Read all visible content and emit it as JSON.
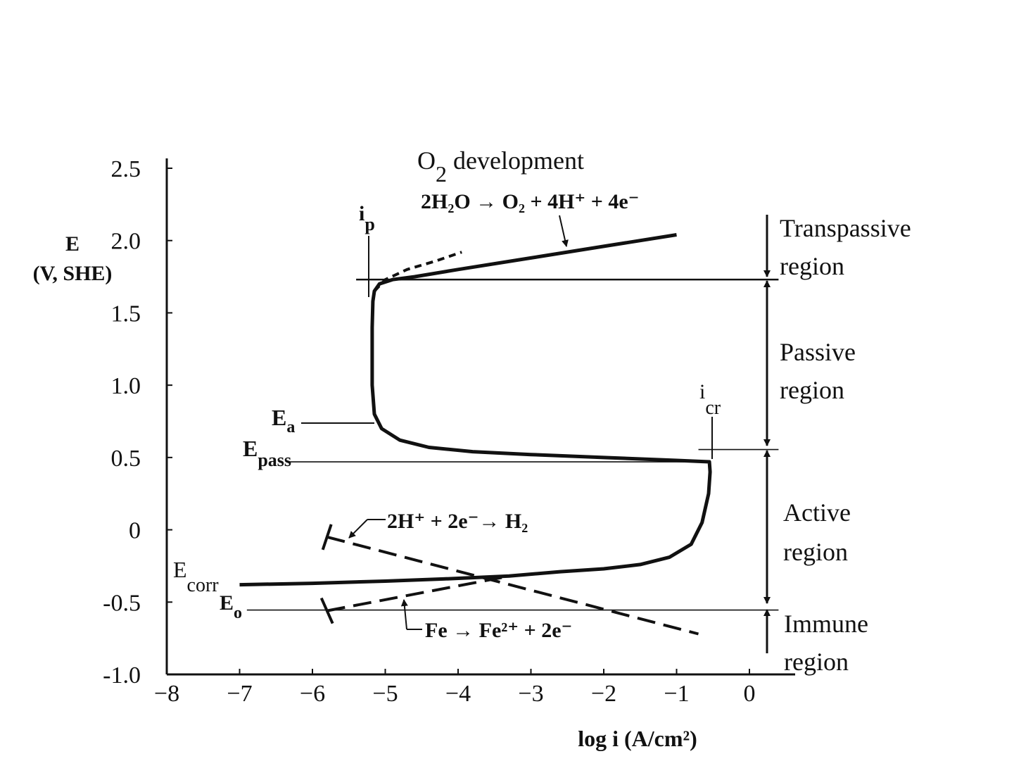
{
  "chart_data": {
    "type": "line",
    "title": "",
    "xlabel": "log i (A/cm²)",
    "ylabel": {
      "line1": "E",
      "line2": "(V, SHE)"
    },
    "xlim": [
      -8,
      0
    ],
    "ylim": [
      -1.0,
      2.5
    ],
    "x_ticks": [
      -8,
      -7,
      -6,
      -5,
      -4,
      -3,
      -2,
      -1,
      0
    ],
    "x_tick_labels": [
      "−8",
      "−7",
      "−6",
      "−5",
      "−4",
      "−3",
      "−2",
      "−1",
      "0"
    ],
    "y_ticks": [
      2.5,
      2.0,
      1.5,
      1.0,
      0.5,
      0,
      -0.5,
      -1.0
    ],
    "y_tick_labels": [
      "2.5",
      "2.0",
      "1.5",
      "1.0",
      "0.5",
      "0",
      "-0.5",
      "-1.0"
    ],
    "series": [
      {
        "id": "polarization",
        "style": "solid",
        "x": [
          -7.0,
          -6.0,
          -5.0,
          -4.2,
          -3.3,
          -2.6,
          -2.0,
          -1.5,
          -1.1,
          -0.8,
          -0.65,
          -0.56,
          -0.54,
          -0.55,
          -1.0,
          -2.0,
          -3.0,
          -3.8,
          -4.4,
          -4.8,
          -5.05,
          -5.15,
          -5.18,
          -5.18,
          -5.17,
          -5.15,
          -5.08,
          -4.9,
          -4.6,
          -4.0,
          -3.0,
          -2.0,
          -1.0
        ],
        "y": [
          -0.38,
          -0.37,
          -0.355,
          -0.34,
          -0.32,
          -0.29,
          -0.27,
          -0.24,
          -0.19,
          -0.1,
          0.05,
          0.25,
          0.4,
          0.47,
          0.48,
          0.5,
          0.52,
          0.54,
          0.57,
          0.62,
          0.7,
          0.8,
          1.0,
          1.4,
          1.58,
          1.65,
          1.7,
          1.73,
          1.75,
          1.8,
          1.88,
          1.96,
          2.04
        ]
      },
      {
        "id": "oxygen-dashed",
        "style": "dashed",
        "x": [
          -5.15,
          -5.0,
          -4.7,
          -4.3,
          -3.95
        ],
        "y": [
          1.65,
          1.73,
          1.8,
          1.86,
          1.92
        ]
      },
      {
        "id": "hydrogen-dashed",
        "style": "dashed",
        "x": [
          -5.8,
          -0.7
        ],
        "y": [
          -0.05,
          -0.72
        ]
      },
      {
        "id": "iron-dashed",
        "style": "dashed",
        "x": [
          -5.8,
          -3.4
        ],
        "y": [
          -0.56,
          -0.33
        ]
      }
    ],
    "reference_lines": [
      {
        "id": "top",
        "y": 1.73,
        "x_from": -5.4,
        "x_to": 0.4
      },
      {
        "id": "icr",
        "y": 0.555,
        "x_from": -0.7,
        "x_to": 0.4
      },
      {
        "id": "epass",
        "y": 0.47,
        "x_from": -6.35,
        "x_to": -0.54
      },
      {
        "id": "eo",
        "y": -0.555,
        "x_from": -6.9,
        "x_to": 0.4
      }
    ],
    "annotations": {
      "o2_development": {
        "main": "O",
        "sub": "2",
        "rest": " development"
      },
      "o2_reaction": "2H₂O → O₂ + 4H⁺ + 4e⁻",
      "ip": {
        "main": "i",
        "sub": "p"
      },
      "icr": {
        "main": "i",
        "sub": "cr"
      },
      "ea": {
        "main": "E",
        "sub": "a"
      },
      "epass": {
        "main": "E",
        "sub": "pass"
      },
      "h2_reaction": "2H⁺ + 2e⁻→ H₂",
      "ecorr": {
        "main": "E",
        "sub": "corr"
      },
      "eo": {
        "main": "E",
        "sub": "o"
      },
      "fe_reaction": "Fe → Fe²⁺ + 2e⁻"
    },
    "regions": [
      {
        "line1": "Transpassive",
        "line2": "region"
      },
      {
        "line1": "Passive",
        "line2": "region"
      },
      {
        "line1": "Active",
        "line2": "region"
      },
      {
        "line1": "Immune",
        "line2": "region"
      }
    ]
  }
}
